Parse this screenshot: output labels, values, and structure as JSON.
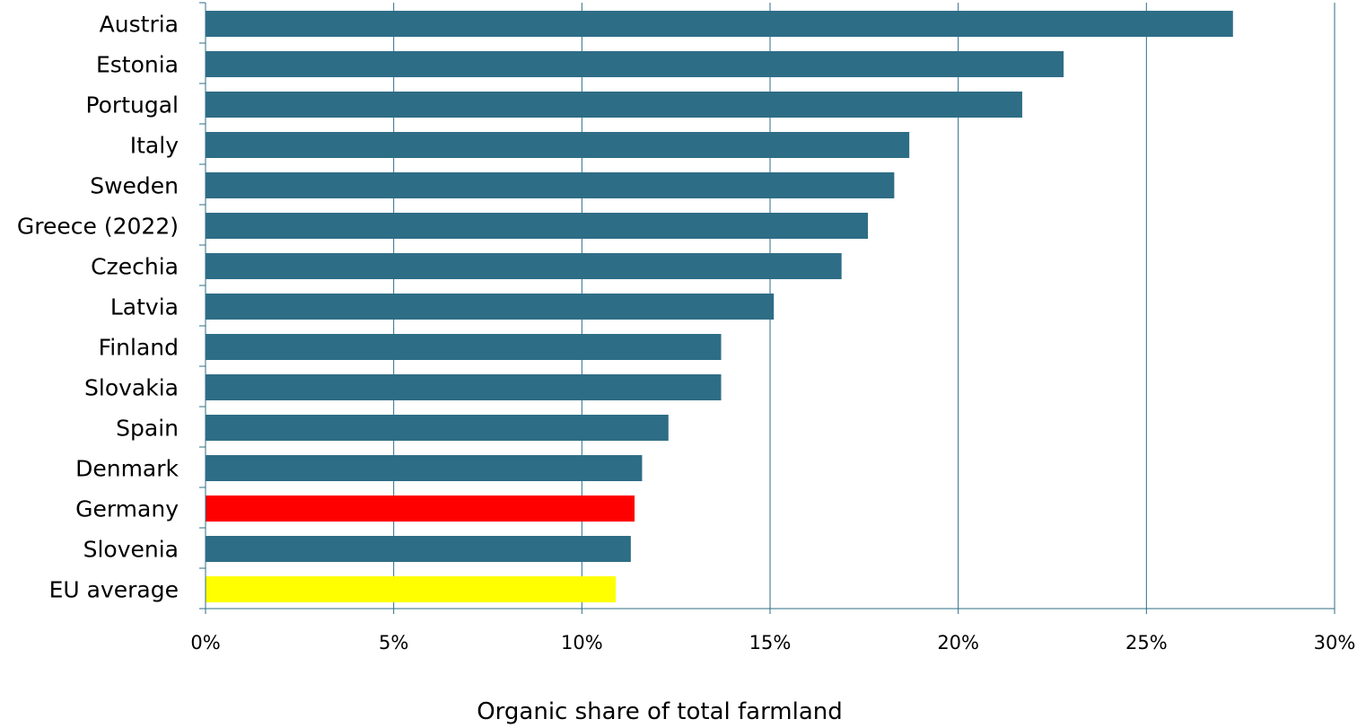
{
  "chart_data": {
    "type": "bar",
    "orientation": "horizontal",
    "categories": [
      "Austria",
      "Estonia",
      "Portugal",
      "Italy",
      "Sweden",
      "Greece (2022)",
      "Czechia",
      "Latvia",
      "Finland",
      "Slovakia",
      "Spain",
      "Denmark",
      "Germany",
      "Slovenia",
      "EU average"
    ],
    "values": [
      27.3,
      22.8,
      21.7,
      18.7,
      18.3,
      17.6,
      16.9,
      15.1,
      13.7,
      13.7,
      12.3,
      11.6,
      11.4,
      11.3,
      10.9
    ],
    "bar_colors": [
      "#2e6d86",
      "#2e6d86",
      "#2e6d86",
      "#2e6d86",
      "#2e6d86",
      "#2e6d86",
      "#2e6d86",
      "#2e6d86",
      "#2e6d86",
      "#2e6d86",
      "#2e6d86",
      "#2e6d86",
      "#ff0000",
      "#2e6d86",
      "#ffff00"
    ],
    "xlim": [
      0,
      30
    ],
    "x_ticks": [
      0,
      5,
      10,
      15,
      20,
      25,
      30
    ],
    "x_tick_labels": [
      "0%",
      "5%",
      "10%",
      "15%",
      "20%",
      "25%",
      "30%"
    ],
    "xlabel": "Organic share of total farmland",
    "ylabel": "",
    "title": "",
    "grid": "vertical gridlines",
    "legend": "none",
    "colors": {
      "default_bar": "#2e6d86",
      "germany_highlight": "#ff0000",
      "eu_average_highlight": "#ffff00",
      "gridline": "#2e6d86",
      "axis": "#2e6d86"
    }
  }
}
